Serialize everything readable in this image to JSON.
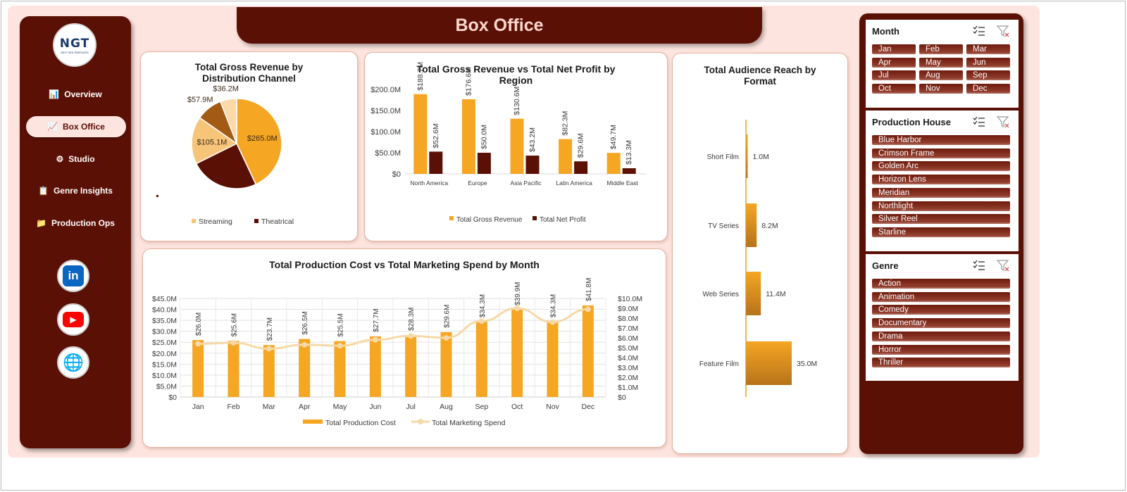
{
  "title": "Box Office",
  "logo": {
    "main": "NGT",
    "sub": "NEXT GEN TEMPLATES"
  },
  "nav": [
    {
      "label": "Overview",
      "icon": "bar-chart-icon",
      "glyph": "📊"
    },
    {
      "label": "Box Office",
      "icon": "trend-chart-icon",
      "glyph": "📈"
    },
    {
      "label": "Studio",
      "icon": "gear-icon",
      "glyph": "⚙"
    },
    {
      "label": "Genre Insights",
      "icon": "clipboard-icon",
      "glyph": "📋"
    },
    {
      "label": "Production Ops",
      "icon": "folder-icon",
      "glyph": "📁"
    }
  ],
  "social": [
    {
      "name": "linkedin-icon",
      "glyph": "in",
      "color": "#0a66c2"
    },
    {
      "name": "youtube-icon",
      "glyph": "▶",
      "color": "#ff0000"
    },
    {
      "name": "globe-icon",
      "glyph": "🌐",
      "color": "#2a7fd4"
    }
  ],
  "colors": {
    "maroon": "#5a1005",
    "orange": "#f5a623",
    "light_orange": "#f7c57a",
    "brown": "#a35a14",
    "pale": "#fbd9a8",
    "canvas": "#fde4de",
    "line": "#f6d9a6"
  },
  "chart_data": [
    {
      "type": "pie",
      "title": "Total Gross Revenue by Distribution Channel",
      "slices": [
        {
          "label": "$265.0M",
          "value": 265.0,
          "color": "#f5a623"
        },
        {
          "label": "",
          "value": 152.0,
          "color": "#5a1005"
        },
        {
          "label": "$105.1M",
          "value": 105.1,
          "color": "#f7c57a"
        },
        {
          "label": "$57.9M",
          "value": 57.9,
          "color": "#a35a14"
        },
        {
          "label": "$36.2M",
          "value": 36.2,
          "color": "#fbd9a8"
        }
      ],
      "legend": [
        {
          "name": "Streaming",
          "color": "#f7c57a"
        },
        {
          "name": "Theatrical",
          "color": "#5a1005"
        }
      ],
      "legend_position": "bottom"
    },
    {
      "type": "bar",
      "title": "Total Gross Revenue vs Total Net Profit by Region",
      "categories": [
        "North America",
        "Europe",
        "Asia Pacific",
        "Latin America",
        "Middle East"
      ],
      "series": [
        {
          "name": "Total Gross Revenue",
          "values": [
            188.7,
            176.6,
            130.6,
            82.3,
            49.7
          ],
          "labels": [
            "$188.7M",
            "$176.6M",
            "$130.6M",
            "$82.3M",
            "$49.7M"
          ],
          "color": "#f5a623"
        },
        {
          "name": "Total Net Profit",
          "values": [
            52.6,
            50.0,
            43.2,
            29.6,
            13.3
          ],
          "labels": [
            "$52.6M",
            "$50.0M",
            "$43.2M",
            "$29.6M",
            "$13.3M"
          ],
          "color": "#5a1005"
        }
      ],
      "yticks": [
        "$0",
        "$50.0M",
        "$100.0M",
        "$150.0M",
        "$200.0M"
      ],
      "ylim": [
        0,
        200
      ],
      "legend_position": "bottom"
    },
    {
      "type": "bar",
      "title": "Total Audience Reach by Format",
      "orientation": "horizontal",
      "categories": [
        "Short Film",
        "TV Series",
        "Web Series",
        "Feature Film"
      ],
      "values": [
        1.0,
        8.2,
        11.4,
        35.0
      ],
      "labels": [
        "1.0M",
        "8.2M",
        "11.4M",
        "35.0M"
      ],
      "color": "#f5a623"
    },
    {
      "type": "bar+line",
      "title": "Total Production Cost vs Total Marketing Spend by Month",
      "categories": [
        "Jan",
        "Feb",
        "Mar",
        "Apr",
        "May",
        "Jun",
        "Jul",
        "Aug",
        "Sep",
        "Oct",
        "Nov",
        "Dec"
      ],
      "series": [
        {
          "name": "Total Production Cost",
          "type": "bar",
          "axis": "left",
          "values": [
            26.0,
            25.6,
            23.7,
            26.5,
            25.5,
            27.7,
            28.3,
            29.6,
            34.3,
            39.9,
            34.3,
            41.8
          ],
          "labels": [
            "$26.0M",
            "$25.6M",
            "$23.7M",
            "$26.5M",
            "$25.5M",
            "$27.7M",
            "$28.3M",
            "$29.6M",
            "$34.3M",
            "$39.9M",
            "$34.3M",
            "$41.8M"
          ],
          "color": "#f5a623"
        },
        {
          "name": "Total Marketing Spend",
          "type": "line",
          "axis": "right",
          "values": [
            5.4,
            5.5,
            4.9,
            5.3,
            5.2,
            5.8,
            6.2,
            6.0,
            7.7,
            9.0,
            7.6,
            8.9
          ],
          "color": "#f6d9a6"
        }
      ],
      "yticks_left": [
        "$0",
        "$5.0M",
        "$10.0M",
        "$15.0M",
        "$20.0M",
        "$25.0M",
        "$30.0M",
        "$35.0M",
        "$40.0M",
        "$45.0M"
      ],
      "yticks_right": [
        "$0",
        "$1.0M",
        "$2.0M",
        "$3.0M",
        "$4.0M",
        "$5.0M",
        "$6.0M",
        "$7.0M",
        "$8.0M",
        "$9.0M",
        "$10.0M"
      ],
      "ylim_left": [
        0,
        45
      ],
      "ylim_right": [
        0,
        10
      ],
      "grid": true,
      "legend_position": "bottom"
    }
  ],
  "slicers": [
    {
      "title": "Month",
      "items": [
        "Jan",
        "Feb",
        "Mar",
        "Apr",
        "May",
        "Jun",
        "Jul",
        "Aug",
        "Sep",
        "Oct",
        "Nov",
        "Dec"
      ],
      "columns": 3
    },
    {
      "title": "Production House",
      "items": [
        "Blue Harbor",
        "Crimson Frame",
        "Golden Arc",
        "Horizon Lens",
        "Meridian",
        "Northlight",
        "Silver Reel",
        "Starline"
      ],
      "columns": 1
    },
    {
      "title": "Genre",
      "items": [
        "Action",
        "Animation",
        "Comedy",
        "Documentary",
        "Drama",
        "Horror",
        "Thriller"
      ],
      "columns": 1
    }
  ]
}
